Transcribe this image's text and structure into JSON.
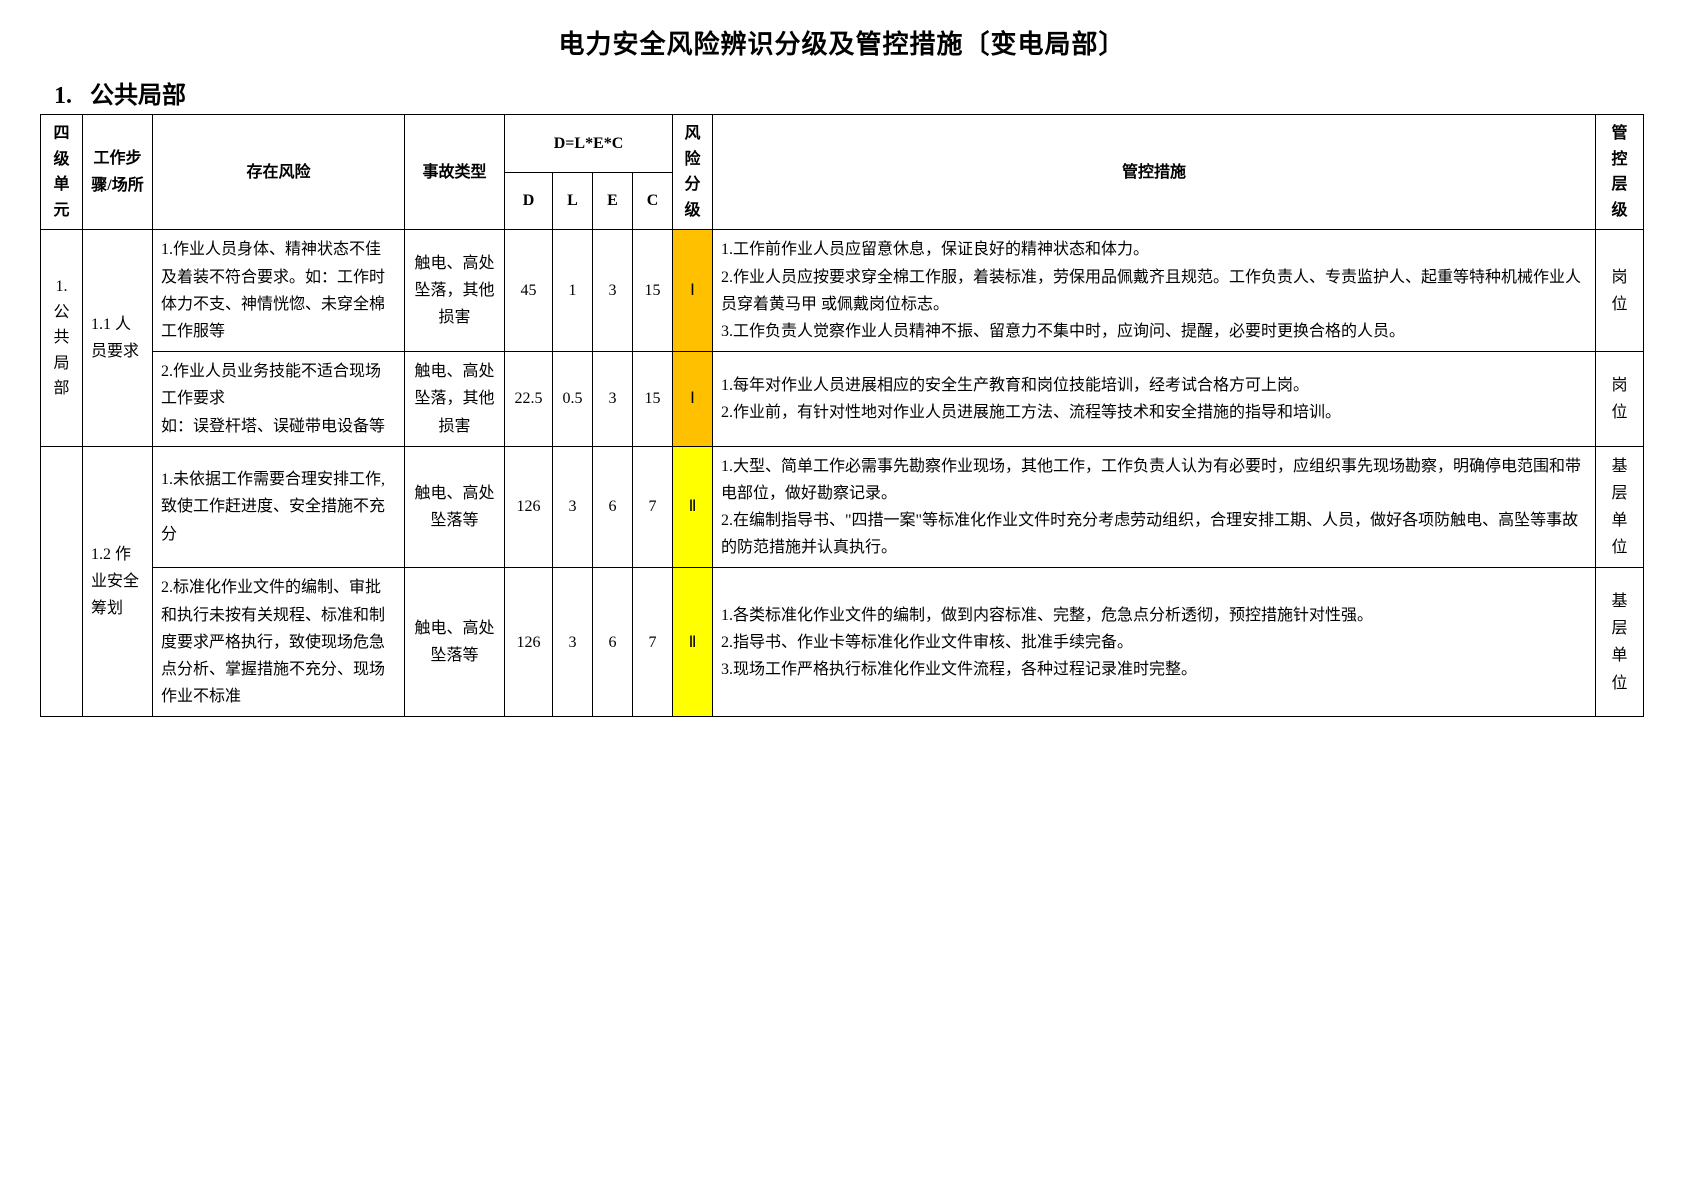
{
  "title": "电力安全风险辨识分级及管控措施〔变电局部〕",
  "section_number": "1.",
  "section_name": "公共局部",
  "colors": {
    "risk_I_bg": "#ffc000",
    "risk_II_bg": "#ffff00",
    "border": "#000000",
    "text": "#000000",
    "background": "#ffffff"
  },
  "header": {
    "unit": "四级单元",
    "step": "工作步骤/场所",
    "risk": "存在风险",
    "type": "事故类型",
    "dlec": "D=L*E*C",
    "d": "D",
    "l": "L",
    "e": "E",
    "c": "C",
    "grade": "风险分级",
    "measure": "管控措施",
    "level": "管控层级"
  },
  "rows": [
    {
      "unit": "1. 公共局部",
      "unit_rowspan": 2,
      "step": "1.1 人员要求",
      "step_rowspan": 2,
      "risk": "1.作业人员身体、精神状态不佳及着装不符合要求。如：工作时体力不支、神情恍惚、未穿全棉工作服等",
      "type": "触电、高处坠落，其他损害",
      "d": "45",
      "l": "1",
      "e": "3",
      "c": "15",
      "grade": "Ⅰ",
      "grade_class": "risk-I",
      "measure": "1.工作前作业人员应留意休息，保证良好的精神状态和体力。\n2.作业人员应按要求穿全棉工作服，着装标准，劳保用品佩戴齐且规范。工作负责人、专责监护人、起重等特种机械作业人员穿着黄马甲 或佩戴岗位标志。\n3.工作负责人觉察作业人员精神不振、留意力不集中时，应询问、提醒，必要时更换合格的人员。",
      "level": "岗位"
    },
    {
      "risk": "2.作业人员业务技能不适合现场工作要求\n如：误登杆塔、误碰带电设备等",
      "type": "触电、高处坠落，其他损害",
      "d": "22.5",
      "l": "0.5",
      "e": "3",
      "c": "15",
      "grade": "Ⅰ",
      "grade_class": "risk-I",
      "measure": "1.每年对作业人员进展相应的安全生产教育和岗位技能培训，经考试合格方可上岗。\n2.作业前，有针对性地对作业人员进展施工方法、流程等技术和安全措施的指导和培训。",
      "level": "岗位"
    },
    {
      "unit": "",
      "unit_rowspan": 2,
      "step": "1.2 作业安全筹划",
      "step_rowspan": 2,
      "risk": "1.未依据工作需要合理安排工作,致使工作赶进度、安全措施不充分",
      "type": "触电、高处坠落等",
      "d": "126",
      "l": "3",
      "e": "6",
      "c": "7",
      "grade": "Ⅱ",
      "grade_class": "risk-II",
      "measure": "1.大型、简单工作必需事先勘察作业现场，其他工作，工作负责人认为有必要时，应组织事先现场勘察，明确停电范围和带电部位，做好勘察记录。\n2.在编制指导书、\"四措一案\"等标准化作业文件时充分考虑劳动组织，合理安排工期、人员，做好各项防触电、高坠等事故的防范措施并认真执行。",
      "level": "基层单位"
    },
    {
      "risk": "2.标准化作业文件的编制、审批和执行未按有关规程、标准和制度要求严格执行，致使现场危急点分析、掌握措施不充分、现场作业不标准",
      "type": "触电、高处坠落等",
      "d": "126",
      "l": "3",
      "e": "6",
      "c": "7",
      "grade": "Ⅱ",
      "grade_class": "risk-II",
      "measure": "1.各类标准化作业文件的编制，做到内容标准、完整，危急点分析透彻，预控措施针对性强。\n2.指导书、作业卡等标准化作业文件审核、批准手续完备。\n3.现场工作严格执行标准化作业文件流程，各种过程记录准时完整。",
      "level": "基层单位"
    }
  ]
}
